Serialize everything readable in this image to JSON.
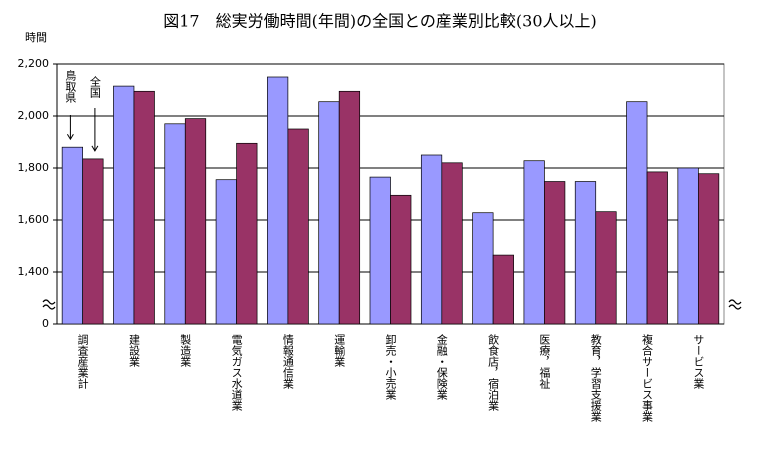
{
  "chart_data": {
    "type": "bar",
    "title": "図17　総実労働時間(年間)の全国との産業別比較(30人以上)",
    "y_label": "時間",
    "categories": [
      "調査産業計",
      "建設業",
      "製造業",
      "電気ガス水道業",
      "情報通信業",
      "運輸業",
      "卸売・小売業",
      "金融・保険業",
      "飲食店，宿泊業",
      "医療，福祉",
      "教育，学習支援業",
      "複合サービス事業",
      "サービス業"
    ],
    "series": [
      {
        "name": "鳥取県",
        "color": "#9999ff",
        "values": [
          1880,
          2115,
          1970,
          1755,
          2150,
          2055,
          1765,
          1850,
          1628,
          1828,
          1748,
          2055,
          1800
        ]
      },
      {
        "name": "全国",
        "color": "#993366",
        "values": [
          1835,
          2095,
          1990,
          1895,
          1950,
          2095,
          1695,
          1820,
          1465,
          1748,
          1632,
          1785,
          1778
        ]
      }
    ],
    "ylim": [
      0,
      2200
    ],
    "yticks": [
      0,
      {
        "value": 1400,
        "label": "1,400"
      },
      {
        "value": 1600,
        "label": "1,600"
      },
      {
        "value": 1800,
        "label": "1,800"
      },
      {
        "value": 2000,
        "label": "2,000"
      },
      {
        "value": 2200,
        "label": "2,200"
      }
    ],
    "axis_break": true,
    "grid": true
  }
}
